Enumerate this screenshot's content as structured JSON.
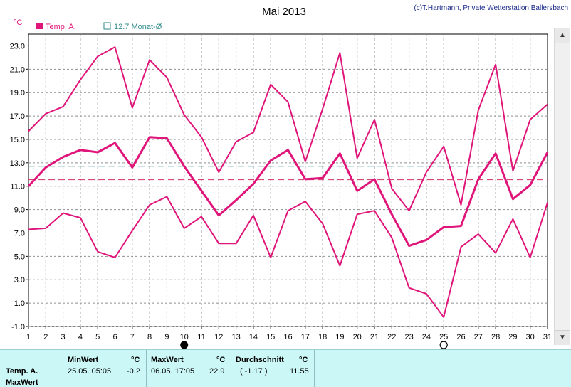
{
  "copyright": "(c)T.Hartmann, Private Wetterstation Ballersbach",
  "colors": {
    "temp": "#e0157a",
    "avg_line": "#2e8a8a",
    "mean_dash": "#d03060",
    "grid": "#909090",
    "panel": "#ccf7f7"
  },
  "icons": [
    "scroll-up-arrow-icon",
    "scroll-down-arrow-icon",
    "full-moon-icon",
    "new-moon-icon"
  ],
  "chart_data": {
    "type": "line",
    "title": "Mai 2013",
    "ylabel": "°C",
    "ylim": [
      -1.0,
      24.0
    ],
    "yticks": [
      "-1.0",
      "1.0",
      "3.0",
      "5.0",
      "7.0",
      "9.0",
      "11.0",
      "13.0",
      "15.0",
      "17.0",
      "19.0",
      "21.0",
      "23.0"
    ],
    "x": [
      "1",
      "2",
      "3",
      "4",
      "5",
      "6",
      "7",
      "8",
      "9",
      "10",
      "11",
      "12",
      "13",
      "14",
      "15",
      "16",
      "17",
      "18",
      "19",
      "20",
      "21",
      "22",
      "23",
      "24",
      "25",
      "26",
      "27",
      "28",
      "29",
      "30",
      "31"
    ],
    "grid": true,
    "legend": {
      "temp_label": "Temp. A.",
      "avg_label": "12.7 Monat-Ø"
    },
    "series": [
      {
        "role": "max",
        "values": [
          15.7,
          17.2,
          17.8,
          20.1,
          22.1,
          22.9,
          17.7,
          21.8,
          20.3,
          17.1,
          15.2,
          12.2,
          14.8,
          15.6,
          19.7,
          18.2,
          13.1,
          17.6,
          22.4,
          13.4,
          16.7,
          10.8,
          8.9,
          12.2,
          14.4,
          9.4,
          17.5,
          21.4,
          12.3,
          16.7,
          18.0
        ]
      },
      {
        "role": "mean",
        "values": [
          11.0,
          12.6,
          13.5,
          14.1,
          13.9,
          14.7,
          12.6,
          15.2,
          15.1,
          12.7,
          10.6,
          8.5,
          9.8,
          11.2,
          13.2,
          14.1,
          11.6,
          11.7,
          13.8,
          10.6,
          11.6,
          8.6,
          5.9,
          6.4,
          7.5,
          7.6,
          11.6,
          13.8,
          9.9,
          11.1,
          13.9
        ]
      },
      {
        "role": "min",
        "values": [
          7.3,
          7.4,
          8.7,
          8.3,
          5.4,
          4.9,
          7.2,
          9.4,
          10.1,
          7.4,
          8.4,
          6.1,
          6.1,
          8.5,
          4.9,
          8.9,
          9.7,
          7.8,
          4.2,
          8.6,
          8.9,
          6.6,
          2.3,
          1.8,
          -0.2,
          5.8,
          6.9,
          5.3,
          8.2,
          4.9,
          9.6
        ]
      }
    ],
    "ref_lines": [
      {
        "kind": "monthly-avg",
        "value": 12.7
      },
      {
        "kind": "period-mean",
        "value": 11.55
      }
    ],
    "moon_markers": [
      {
        "day": 10,
        "phase": "full"
      },
      {
        "day": 25,
        "phase": "new"
      }
    ]
  },
  "stats": {
    "row_name": "Temp. A.",
    "row_sub": "MaxWert",
    "min": {
      "header": "MinWert",
      "unit": "°C",
      "datetime": "25.05.  05:05",
      "value": "-0.2"
    },
    "max": {
      "header": "MaxWert",
      "unit": "°C",
      "datetime": "06.05.  17:05",
      "value": "22.9"
    },
    "avg": {
      "header": "Durchschnitt",
      "unit": "°C",
      "delta": "( -1.17 )",
      "value": "11.55"
    }
  }
}
